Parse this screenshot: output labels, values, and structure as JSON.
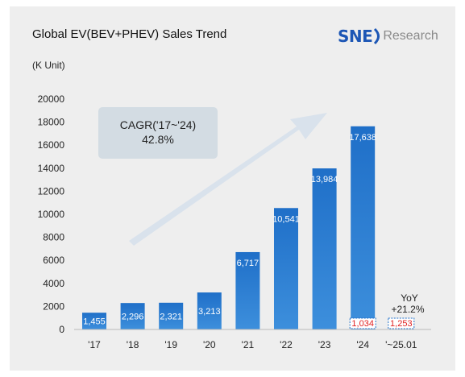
{
  "header": {
    "title": "Global EV(BEV+PHEV) Sales Trend",
    "unit": "(K Unit)",
    "logo": {
      "brand": "SNE",
      "suffix": "Research",
      "color": "#1c56b5"
    }
  },
  "annotations": {
    "cagr_label": "CAGR('17~'24)",
    "cagr_value": "42.8%",
    "yoy_label": "YoY",
    "yoy_value": "+21.2%"
  },
  "chart_data": {
    "type": "bar",
    "title": "Global EV(BEV+PHEV) Sales Trend",
    "ylabel": "(K Unit)",
    "xlabel": "",
    "ylim": [
      0,
      20000
    ],
    "yticks": [
      0,
      2000,
      4000,
      6000,
      8000,
      10000,
      12000,
      14000,
      16000,
      18000,
      20000
    ],
    "grid": false,
    "categories": [
      "'17",
      "'18",
      "'19",
      "'20",
      "'21",
      "'22",
      "'23",
      "'24",
      "'~25.01"
    ],
    "values": [
      1455,
      2296,
      2321,
      3213,
      6717,
      10541,
      13984,
      17638,
      null
    ],
    "value_labels": [
      "1,455",
      "2,296",
      "2,321",
      "3,213",
      "6,717",
      "10,541",
      "13,984",
      "17,638",
      ""
    ],
    "january_values": [
      null,
      null,
      null,
      null,
      null,
      null,
      null,
      1034,
      1253
    ],
    "january_labels": [
      "",
      "",
      "",
      "",
      "",
      "",
      "",
      "1,034",
      "1,253"
    ],
    "colors": {
      "bar": "#1f6fc8",
      "highlight": "#e02020",
      "arrow": "#d9e2ec",
      "cagr_box": "#d3dce3"
    }
  }
}
